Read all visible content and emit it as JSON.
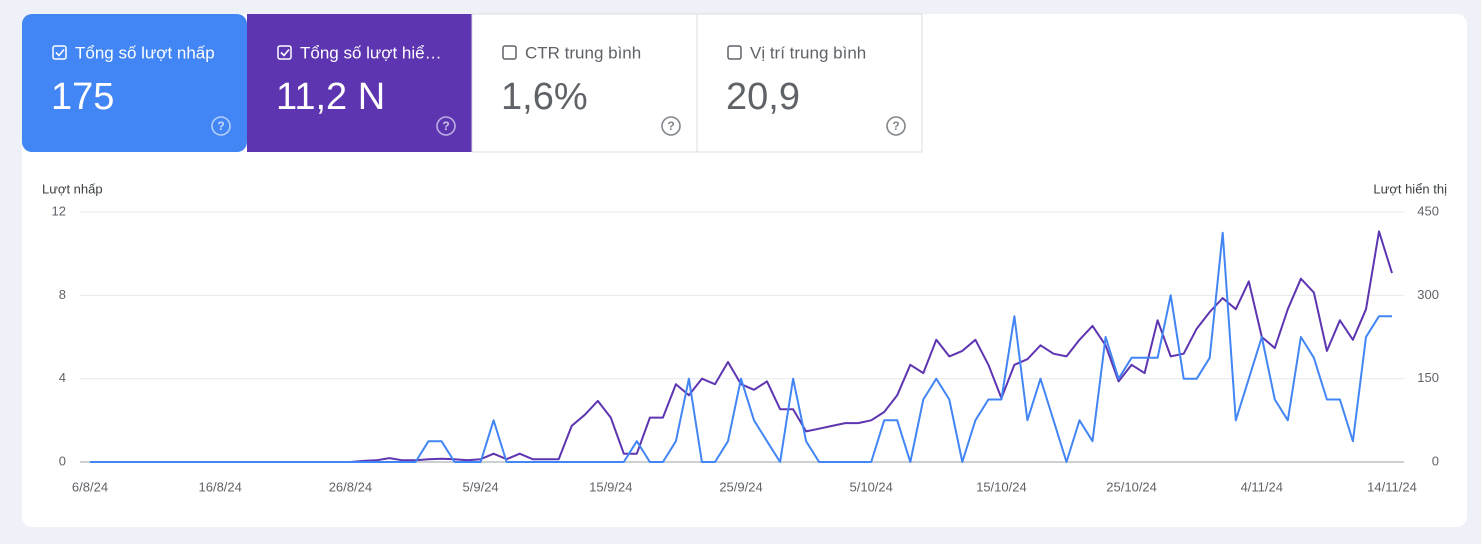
{
  "cards": [
    {
      "label": "Tổng số lượt nhấp",
      "value": "175",
      "checked": true,
      "color": "#4285f4"
    },
    {
      "label": "Tổng số lượt hiể…",
      "value": "11,2 N",
      "checked": true,
      "color": "#5e35b1"
    },
    {
      "label": "CTR trung bình",
      "value": "1,6%",
      "checked": false,
      "color": "#ffffff"
    },
    {
      "label": "Vị trí trung bình",
      "value": "20,9",
      "checked": false,
      "color": "#ffffff"
    }
  ],
  "chart_data": {
    "type": "line",
    "categories": [
      "6/8/24",
      null,
      null,
      null,
      null,
      null,
      null,
      null,
      null,
      null,
      "16/8/24",
      null,
      null,
      null,
      null,
      null,
      null,
      null,
      null,
      null,
      "26/8/24",
      null,
      null,
      null,
      null,
      null,
      null,
      null,
      null,
      null,
      "5/9/24",
      null,
      null,
      null,
      null,
      null,
      null,
      null,
      null,
      null,
      "15/9/24",
      null,
      null,
      null,
      null,
      null,
      null,
      null,
      null,
      null,
      "25/9/24",
      null,
      null,
      null,
      null,
      null,
      null,
      null,
      null,
      null,
      "5/10/24",
      null,
      null,
      null,
      null,
      null,
      null,
      null,
      null,
      null,
      "15/10/24",
      null,
      null,
      null,
      null,
      null,
      null,
      null,
      null,
      null,
      "25/10/24",
      null,
      null,
      null,
      null,
      null,
      null,
      null,
      null,
      null,
      "4/11/24",
      null,
      null,
      null,
      null,
      null,
      null,
      null,
      null,
      null,
      "14/11/24"
    ],
    "series": [
      {
        "name": "Lượt nhấp",
        "color": "#4285f4",
        "values": [
          0,
          0,
          0,
          0,
          0,
          0,
          0,
          0,
          0,
          0,
          0,
          0,
          0,
          0,
          0,
          0,
          0,
          0,
          0,
          0,
          0,
          0,
          0,
          0,
          0,
          0,
          1,
          1,
          0,
          0,
          0,
          2,
          0,
          0,
          0,
          0,
          0,
          0,
          0,
          0,
          0,
          0,
          1,
          0,
          0,
          1,
          4,
          0,
          0,
          1,
          4,
          2,
          1,
          0,
          4,
          1,
          0,
          0,
          0,
          0,
          0,
          2,
          2,
          0,
          3,
          4,
          3,
          0,
          2,
          3,
          3,
          7,
          2,
          4,
          2,
          0,
          2,
          1,
          6,
          4,
          5,
          5,
          5,
          8,
          4,
          4,
          5,
          11,
          2,
          4,
          6,
          3,
          2,
          6,
          5,
          3,
          3,
          1,
          6,
          7,
          7
        ]
      },
      {
        "name": "Lượt hiển thị",
        "color": "#5e35b1",
        "axis": "y2",
        "values": [
          0,
          0,
          0,
          0,
          0,
          0,
          0,
          0,
          0,
          0,
          0,
          0,
          0,
          0,
          0,
          0,
          0,
          0,
          0,
          0,
          0,
          2,
          3,
          7,
          3,
          3,
          5,
          6,
          5,
          3,
          5,
          15,
          5,
          15,
          5,
          5,
          5,
          65,
          85,
          110,
          80,
          15,
          15,
          80,
          80,
          140,
          120,
          150,
          140,
          180,
          140,
          130,
          145,
          95,
          95,
          55,
          60,
          65,
          70,
          70,
          75,
          90,
          120,
          175,
          160,
          220,
          190,
          200,
          220,
          175,
          115,
          175,
          185,
          210,
          195,
          190,
          220,
          245,
          210,
          145,
          175,
          160,
          255,
          190,
          195,
          240,
          270,
          295,
          275,
          325,
          225,
          205,
          275,
          330,
          305,
          200,
          255,
          220,
          275,
          415,
          340
        ]
      }
    ],
    "ylim": [
      0,
      12
    ],
    "yticks": [
      0,
      4,
      8,
      12
    ],
    "y2lim": [
      0,
      450
    ],
    "y2ticks": [
      0,
      150,
      300,
      450
    ],
    "grid": true
  }
}
